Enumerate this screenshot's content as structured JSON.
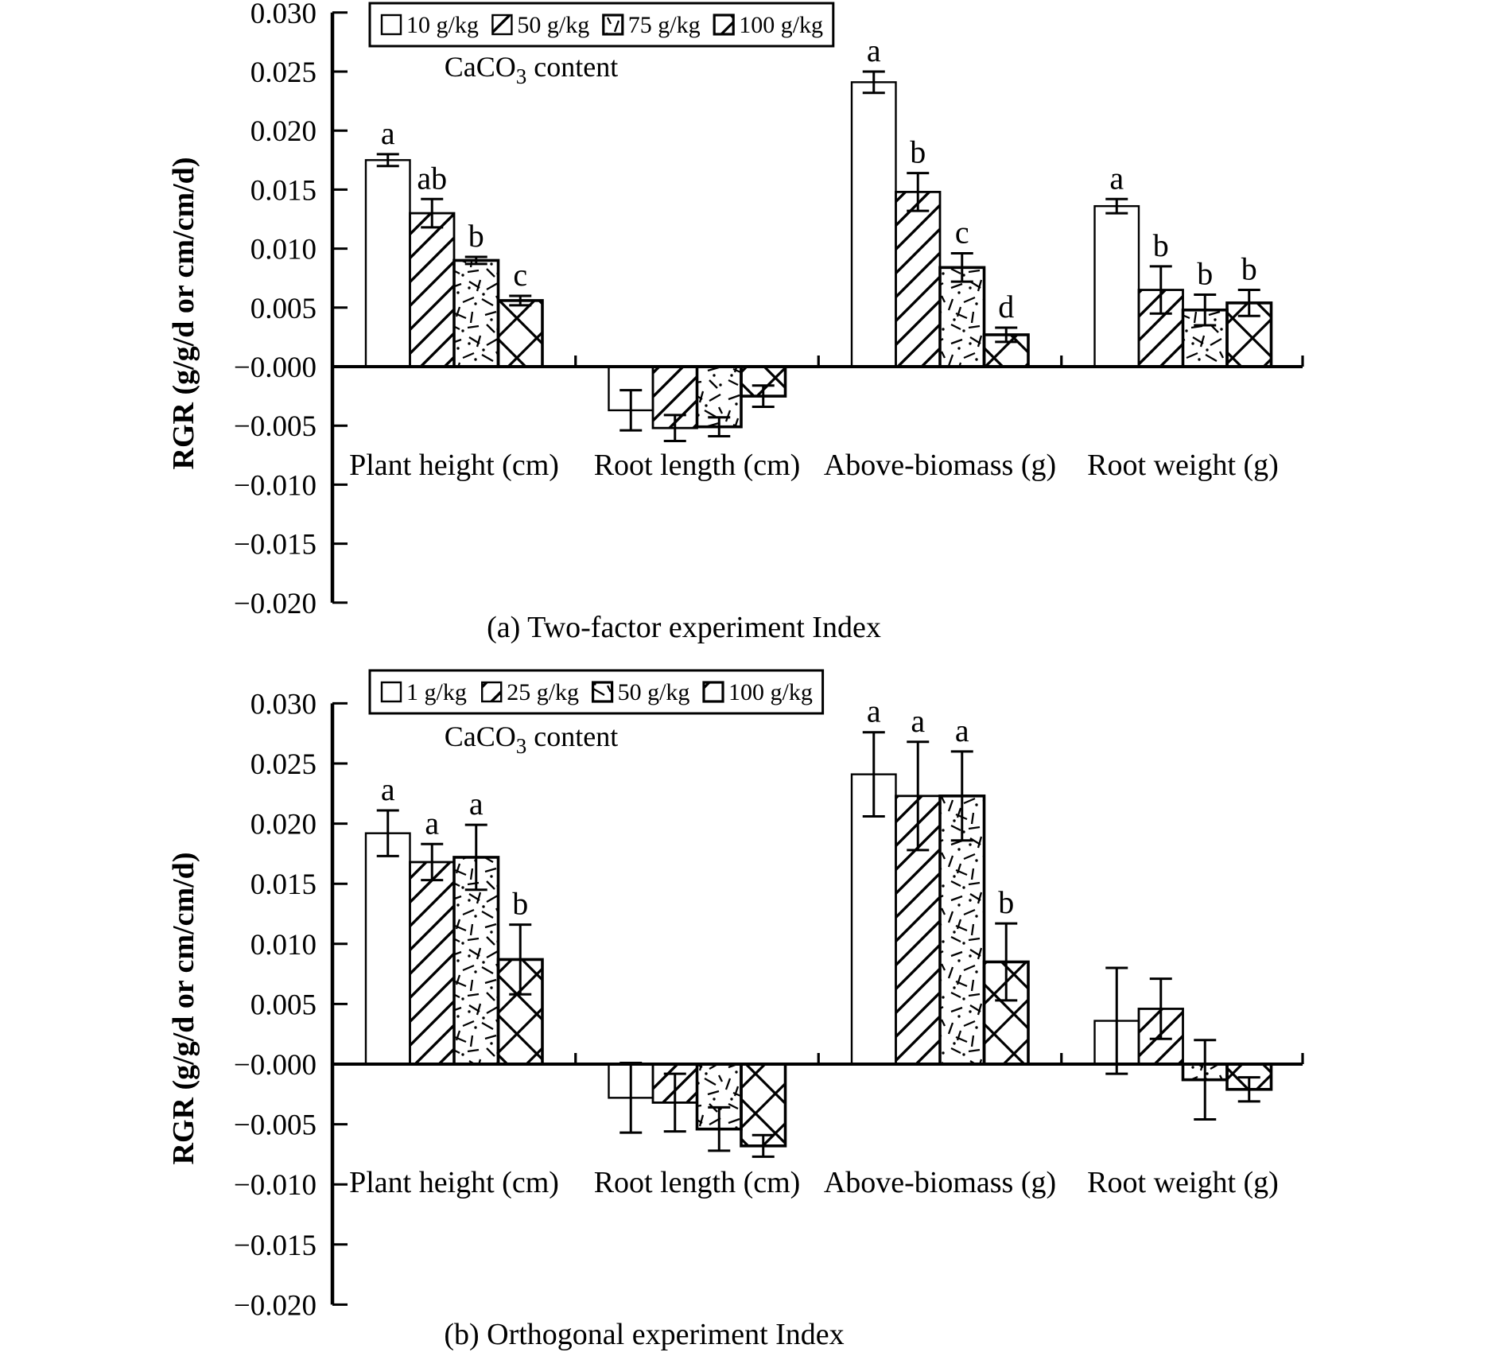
{
  "figure": {
    "background": "#ffffff",
    "ink": "#000000"
  },
  "chart_data": [
    {
      "type": "bar",
      "panel": "a",
      "caption": "(a) Two-factor experiment Index",
      "legend_title": {
        "prefix": "CaCO",
        "sub": "3",
        "suffix": " content"
      },
      "legend_position": "top",
      "grid": false,
      "ylabel": "RGR (g/g/d or cm/cm/d)",
      "ylim": [
        -0.02,
        0.03
      ],
      "ytick_step": 0.005,
      "categories": [
        "Plant height (cm)",
        "Root length (cm)",
        "Above-biomass (g)",
        "Root weight (g)"
      ],
      "series": [
        {
          "name": "10 g/kg",
          "pattern": "plain",
          "values": [
            0.0175,
            -0.0037,
            0.0241,
            0.0136
          ],
          "errors": [
            0.0005,
            0.0017,
            0.0009,
            0.0006
          ],
          "letters": [
            "a",
            "",
            "a",
            "a"
          ]
        },
        {
          "name": "50 g/kg",
          "pattern": "diagonal-hatch",
          "values": [
            0.013,
            -0.0052,
            0.0148,
            0.0065
          ],
          "errors": [
            0.0012,
            0.0011,
            0.0016,
            0.002
          ],
          "letters": [
            "ab",
            "",
            "b",
            "b"
          ]
        },
        {
          "name": "75 g/kg",
          "pattern": "speckle",
          "values": [
            0.009,
            -0.0051,
            0.0084,
            0.0048
          ],
          "errors": [
            0.0003,
            0.0008,
            0.0012,
            0.0013
          ],
          "letters": [
            "b",
            "",
            "c",
            "b"
          ]
        },
        {
          "name": "100 g/kg",
          "pattern": "crosshatch",
          "values": [
            0.0056,
            -0.0025,
            0.0027,
            0.0054
          ],
          "errors": [
            0.0004,
            0.0009,
            0.0006,
            0.0011
          ],
          "letters": [
            "c",
            "",
            "d",
            "b"
          ]
        }
      ]
    },
    {
      "type": "bar",
      "panel": "b",
      "caption": "(b) Orthogonal experiment Index",
      "legend_title": {
        "prefix": "CaCO",
        "sub": "3",
        "suffix": " content"
      },
      "legend_position": "top",
      "grid": false,
      "ylabel": "RGR (g/g/d or cm/cm/d)",
      "ylim": [
        -0.02,
        0.03
      ],
      "ytick_step": 0.005,
      "categories": [
        "Plant height (cm)",
        "Root length (cm)",
        "Above-biomass (g)",
        "Root weight (g)"
      ],
      "series": [
        {
          "name": "1 g/kg",
          "pattern": "plain",
          "values": [
            0.0192,
            -0.0028,
            0.0241,
            0.0036
          ],
          "errors": [
            0.0019,
            0.0029,
            0.0035,
            0.0044
          ],
          "letters": [
            "a",
            "",
            "a",
            ""
          ]
        },
        {
          "name": "25 g/kg",
          "pattern": "diagonal-hatch",
          "values": [
            0.0168,
            -0.0032,
            0.0223,
            0.0046
          ],
          "errors": [
            0.0015,
            0.0024,
            0.0045,
            0.0025
          ],
          "letters": [
            "a",
            "",
            "a",
            ""
          ]
        },
        {
          "name": "50 g/kg",
          "pattern": "speckle",
          "values": [
            0.0172,
            -0.0054,
            0.0223,
            -0.0013
          ],
          "errors": [
            0.0027,
            0.0018,
            0.0037,
            0.0033
          ],
          "letters": [
            "a",
            "",
            "a",
            ""
          ]
        },
        {
          "name": "100 g/kg",
          "pattern": "crosshatch",
          "values": [
            0.0087,
            -0.0068,
            0.0085,
            -0.0021
          ],
          "errors": [
            0.0029,
            0.0009,
            0.0032,
            0.001
          ],
          "letters": [
            "b",
            "",
            "b",
            ""
          ]
        }
      ]
    }
  ]
}
